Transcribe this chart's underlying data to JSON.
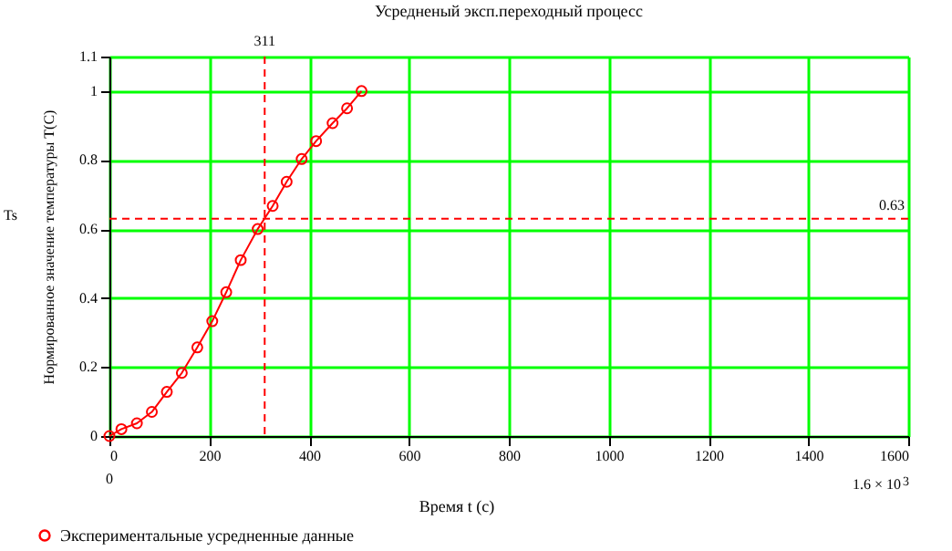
{
  "chart_data": {
    "type": "line",
    "title": "Усредненый эксп.переходный процесс",
    "xlabel": "Время t (с)",
    "ylabel": "Нормированное значение температуры T(C)",
    "x": [
      0,
      24,
      55,
      85,
      115,
      145,
      176,
      206,
      234,
      263,
      297,
      327,
      355,
      385,
      414,
      447,
      476,
      505
    ],
    "series": [
      {
        "name": "Экспериментальные усредненные данные",
        "color": "#ff0000",
        "values": [
          0,
          0.02,
          0.037,
          0.07,
          0.128,
          0.183,
          0.257,
          0.333,
          0.417,
          0.51,
          0.6,
          0.667,
          0.737,
          0.803,
          0.855,
          0.907,
          0.95,
          1.0
        ]
      }
    ],
    "xlim": [
      0,
      1600
    ],
    "xticks": [
      0,
      200,
      400,
      600,
      800,
      1000,
      1200,
      1400,
      1600
    ],
    "ylim": [
      0,
      1.1
    ],
    "yticks": [
      0,
      0.2,
      0.4,
      0.6,
      0.8,
      1,
      1.1
    ],
    "grid": true,
    "marker": "circle",
    "line_style": "solid",
    "legend": "bottom left",
    "ref_lines": [
      {
        "axis": "x",
        "value": 311,
        "label": "311",
        "color": "#ff0000",
        "line_style": "dashed"
      },
      {
        "axis": "y",
        "value": 0.63,
        "label": "0.63",
        "color": "#ff0000",
        "line_style": "dashed"
      }
    ],
    "annotations": [
      "Ts",
      "0",
      "1.6 × 10$^{3}$"
    ]
  }
}
